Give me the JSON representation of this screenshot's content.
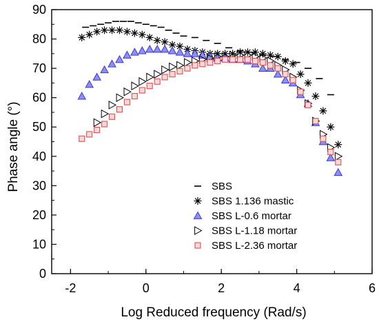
{
  "chart_data": {
    "type": "scatter",
    "title": "",
    "xlabel": "Log Reduced frequency (Rad/s)",
    "ylabel": "Phase angle (°)",
    "xlim": [
      -2.5,
      6
    ],
    "ylim": [
      0,
      90
    ],
    "x_ticks": [
      -2,
      0,
      2,
      4,
      6
    ],
    "y_ticks": [
      0,
      10,
      20,
      30,
      40,
      50,
      60,
      70,
      80,
      90
    ],
    "x_tick_labels": [
      "-2",
      "0",
      "2",
      "4",
      "6"
    ],
    "y_tick_labels": [
      "0",
      "10",
      "20",
      "30",
      "40",
      "50",
      "60",
      "70",
      "80",
      "90"
    ],
    "grid": false,
    "legend_position": "bottom-center",
    "series": [
      {
        "name": "SBS",
        "marker": "dash",
        "color": "#000000",
        "points": [
          [
            -1.6,
            84.0
          ],
          [
            -1.4,
            84.5
          ],
          [
            -1.2,
            85.0
          ],
          [
            -1.0,
            85.5
          ],
          [
            -0.8,
            86.0
          ],
          [
            -0.6,
            86.0
          ],
          [
            -0.4,
            86.0
          ],
          [
            -0.2,
            85.5
          ],
          [
            0.0,
            85.0
          ],
          [
            0.2,
            84.5
          ],
          [
            0.4,
            84.0
          ],
          [
            0.6,
            83.0
          ],
          [
            0.8,
            82.0
          ],
          [
            1.0,
            81.0
          ],
          [
            1.3,
            80.5
          ],
          [
            1.6,
            79.5
          ],
          [
            1.9,
            78.5
          ],
          [
            2.2,
            77.0
          ],
          [
            2.5,
            76.0
          ],
          [
            2.8,
            75.5
          ],
          [
            3.1,
            74.5
          ],
          [
            3.4,
            74.0
          ],
          [
            3.7,
            73.0
          ],
          [
            4.0,
            72.0
          ],
          [
            4.3,
            70.0
          ],
          [
            4.6,
            66.5
          ],
          [
            4.9,
            61.0
          ]
        ]
      },
      {
        "name": "SBS 1.136 mastic",
        "marker": "asterisk",
        "color": "#000000",
        "points": [
          [
            -1.7,
            80.5
          ],
          [
            -1.5,
            81.5
          ],
          [
            -1.3,
            82.5
          ],
          [
            -1.1,
            83.0
          ],
          [
            -0.9,
            83.0
          ],
          [
            -0.7,
            83.0
          ],
          [
            -0.5,
            82.5
          ],
          [
            -0.3,
            82.0
          ],
          [
            -0.1,
            81.5
          ],
          [
            0.1,
            80.5
          ],
          [
            0.3,
            79.5
          ],
          [
            0.5,
            79.0
          ],
          [
            0.7,
            78.0
          ],
          [
            0.9,
            77.5
          ],
          [
            1.1,
            76.5
          ],
          [
            1.3,
            76.0
          ],
          [
            1.5,
            75.5
          ],
          [
            1.7,
            75.0
          ],
          [
            1.9,
            75.0
          ],
          [
            2.1,
            75.0
          ],
          [
            2.3,
            75.0
          ],
          [
            2.5,
            75.5
          ],
          [
            2.7,
            75.5
          ],
          [
            2.9,
            75.5
          ],
          [
            3.1,
            75.0
          ],
          [
            3.3,
            74.5
          ],
          [
            3.5,
            74.0
          ],
          [
            3.7,
            72.5
          ],
          [
            3.9,
            71.5
          ],
          [
            4.1,
            68.0
          ],
          [
            4.3,
            65.0
          ],
          [
            4.5,
            60.5
          ],
          [
            4.7,
            55.5
          ],
          [
            4.9,
            50.0
          ],
          [
            5.1,
            44.0
          ]
        ]
      },
      {
        "name": "SBS L-0.6 mortar",
        "marker": "triangle-up",
        "color": "#3b3bd6",
        "points": [
          [
            -1.7,
            60.5
          ],
          [
            -1.5,
            64.5
          ],
          [
            -1.3,
            67.0
          ],
          [
            -1.1,
            69.5
          ],
          [
            -0.9,
            71.5
          ],
          [
            -0.7,
            73.0
          ],
          [
            -0.5,
            74.5
          ],
          [
            -0.3,
            75.5
          ],
          [
            -0.1,
            76.0
          ],
          [
            0.1,
            76.5
          ],
          [
            0.3,
            76.5
          ],
          [
            0.5,
            76.5
          ],
          [
            0.7,
            76.0
          ],
          [
            0.9,
            75.5
          ],
          [
            1.1,
            75.0
          ],
          [
            1.3,
            75.0
          ],
          [
            1.5,
            74.5
          ],
          [
            1.7,
            74.0
          ],
          [
            1.9,
            73.5
          ],
          [
            2.1,
            73.5
          ],
          [
            2.3,
            73.0
          ],
          [
            2.5,
            73.0
          ],
          [
            2.7,
            72.5
          ],
          [
            2.9,
            71.5
          ],
          [
            3.1,
            70.0
          ],
          [
            3.3,
            70.0
          ],
          [
            3.5,
            68.0
          ],
          [
            3.7,
            66.0
          ],
          [
            3.9,
            65.0
          ],
          [
            4.1,
            61.0
          ],
          [
            4.3,
            58.0
          ],
          [
            4.5,
            51.5
          ],
          [
            4.7,
            45.0
          ],
          [
            4.9,
            39.5
          ],
          [
            5.1,
            34.5
          ]
        ]
      },
      {
        "name": "SBS L-1.18 mortar",
        "marker": "triangle-right",
        "color": "#000000",
        "points": [
          [
            -1.3,
            51.5
          ],
          [
            -1.1,
            54.5
          ],
          [
            -0.9,
            57.5
          ],
          [
            -0.7,
            60.0
          ],
          [
            -0.5,
            62.0
          ],
          [
            -0.3,
            64.0
          ],
          [
            -0.1,
            65.5
          ],
          [
            0.1,
            67.0
          ],
          [
            0.3,
            68.0
          ],
          [
            0.5,
            69.5
          ],
          [
            0.7,
            70.5
          ],
          [
            0.9,
            71.0
          ],
          [
            1.1,
            72.0
          ],
          [
            1.3,
            72.5
          ],
          [
            1.5,
            73.0
          ],
          [
            1.7,
            73.5
          ],
          [
            1.9,
            74.0
          ],
          [
            2.1,
            74.0
          ],
          [
            2.3,
            74.5
          ],
          [
            2.5,
            74.5
          ],
          [
            2.7,
            74.5
          ],
          [
            2.9,
            74.0
          ],
          [
            3.1,
            73.5
          ],
          [
            3.3,
            72.5
          ],
          [
            3.5,
            71.0
          ],
          [
            3.7,
            69.5
          ],
          [
            3.9,
            67.0
          ],
          [
            4.1,
            62.5
          ],
          [
            4.3,
            58.0
          ],
          [
            4.5,
            52.0
          ],
          [
            4.7,
            47.5
          ],
          [
            4.9,
            43.0
          ],
          [
            5.1,
            40.0
          ]
        ]
      },
      {
        "name": "SBS L-2.36 mortar",
        "marker": "square",
        "color": "#e05050",
        "points": [
          [
            -1.7,
            46.0
          ],
          [
            -1.5,
            47.5
          ],
          [
            -1.3,
            49.0
          ],
          [
            -1.1,
            51.0
          ],
          [
            -0.9,
            53.5
          ],
          [
            -0.7,
            56.0
          ],
          [
            -0.5,
            58.5
          ],
          [
            -0.3,
            60.5
          ],
          [
            -0.1,
            62.5
          ],
          [
            0.1,
            64.0
          ],
          [
            0.3,
            65.5
          ],
          [
            0.5,
            67.0
          ],
          [
            0.7,
            68.0
          ],
          [
            0.9,
            69.0
          ],
          [
            1.1,
            70.0
          ],
          [
            1.3,
            71.0
          ],
          [
            1.5,
            71.5
          ],
          [
            1.7,
            72.0
          ],
          [
            1.9,
            72.5
          ],
          [
            2.1,
            73.0
          ],
          [
            2.3,
            73.0
          ],
          [
            2.5,
            73.0
          ],
          [
            2.7,
            73.0
          ],
          [
            2.9,
            72.5
          ],
          [
            3.1,
            72.0
          ],
          [
            3.3,
            71.0
          ],
          [
            3.5,
            70.0
          ],
          [
            3.7,
            68.0
          ],
          [
            3.9,
            66.0
          ],
          [
            4.1,
            62.0
          ],
          [
            4.3,
            57.5
          ],
          [
            4.5,
            52.0
          ],
          [
            4.7,
            46.0
          ],
          [
            4.9,
            41.5
          ],
          [
            5.1,
            38.0
          ]
        ]
      }
    ]
  }
}
